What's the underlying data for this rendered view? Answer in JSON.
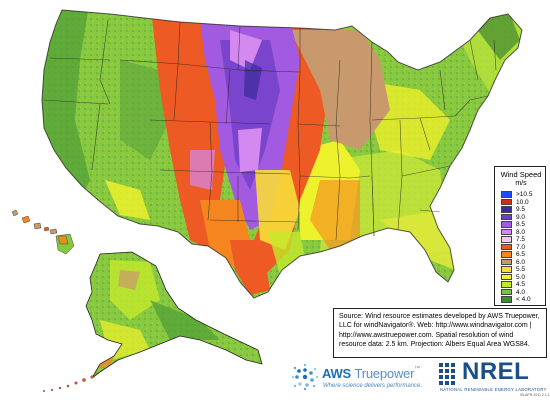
{
  "legend": {
    "title": "Wind Speed",
    "unit": "m/s",
    "items": [
      {
        "label": ">10.5",
        "color": "#1a4dff"
      },
      {
        "label": "10.0",
        "color": "#d9281c"
      },
      {
        "label": "9.5",
        "color": "#3b2a99"
      },
      {
        "label": "9.0",
        "color": "#6f3fc8"
      },
      {
        "label": "8.5",
        "color": "#a25ae0"
      },
      {
        "label": "8.0",
        "color": "#d489f0"
      },
      {
        "label": "7.5",
        "color": "#f2c8f7"
      },
      {
        "label": "7.0",
        "color": "#ec5a25"
      },
      {
        "label": "6.5",
        "color": "#f5851f"
      },
      {
        "label": "6.0",
        "color": "#c8986d"
      },
      {
        "label": "5.5",
        "color": "#f7dc3a"
      },
      {
        "label": "5.0",
        "color": "#f2f22b"
      },
      {
        "label": "4.5",
        "color": "#c3e82a"
      },
      {
        "label": "4.0",
        "color": "#7ac242"
      },
      {
        "label": "< 4.0",
        "color": "#3a8a37"
      }
    ]
  },
  "source": {
    "text": "Source: Wind resource estimates developed by AWS Truepower, LLC for windNavigator®. Web: http://www.windnavigator.com | http://www.awstruepower.com. Spatial resolution of wind resource data: 2.5 km. Projection: Albers Equal Area WGS84."
  },
  "logos": {
    "aws_brand": "AWS",
    "aws_brand_suffix": "Truepower",
    "aws_tm": "™",
    "aws_tagline": "Where science delivers performance.",
    "nrel_brand": "NREL",
    "nrel_full": "NATIONAL RENEWABLE ENERGY LABORATORY",
    "date_stamp": "05-APR-2011 2.1.1"
  },
  "regions": [
    {
      "name": "contiguous-us"
    },
    {
      "name": "alaska"
    },
    {
      "name": "hawaii"
    }
  ]
}
